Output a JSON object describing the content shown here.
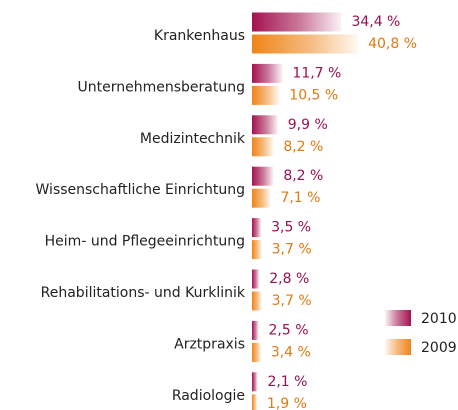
{
  "chart_data": {
    "type": "hbar",
    "categories": [
      "Krankenhaus",
      "Unternehmensberatung",
      "Medizintechnik",
      "Wissenschaftliche Einrichtung",
      "Heim- und Pflegeeinrichtung",
      "Rehabilitations- und Kurklinik",
      "Arztpraxis",
      "Radiologie"
    ],
    "series": [
      {
        "name": "2010",
        "color": "#a3124f",
        "label_color": "#9b1050",
        "values": [
          34.4,
          11.7,
          9.9,
          8.2,
          3.5,
          2.8,
          2.5,
          2.1
        ],
        "value_labels": [
          "34,4 %",
          "11,7 %",
          "9,9 %",
          "8,2 %",
          "3,5 %",
          "2,8 %",
          "2,5 %",
          "2,1 %"
        ]
      },
      {
        "name": "2009",
        "color": "#ef8418",
        "label_color": "#e07a12",
        "values": [
          40.8,
          10.5,
          8.2,
          7.1,
          3.7,
          3.7,
          3.4,
          1.9
        ],
        "value_labels": [
          "40,8 %",
          "10,5 %",
          "8,2 %",
          "7,1 %",
          "3,7 %",
          "3,7 %",
          "3,4 %",
          "1,9 %"
        ]
      }
    ],
    "legend": "right"
  }
}
